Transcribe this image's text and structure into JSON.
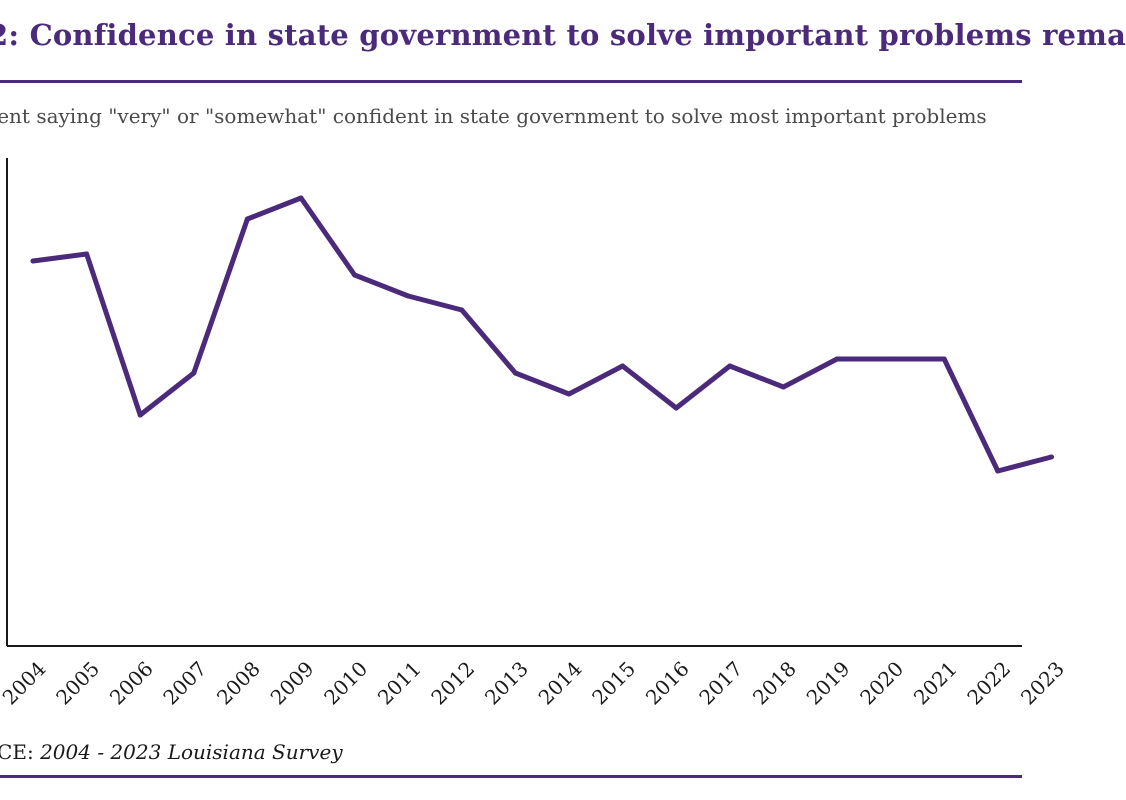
{
  "header": {
    "title": "2: Confidence in state government to solve important problems rema",
    "subtitle": "cent  saying \"very\" or \"somewhat\" confident in state government to solve most important problems"
  },
  "footer": {
    "source_label": "RCE:",
    "source_text": "2004 - 2023 Louisiana Survey"
  },
  "chart_data": {
    "type": "line",
    "title": "2: Confidence in state government to solve important problems rema",
    "subtitle": "cent  saying \"very\" or \"somewhat\" confident in state government to solve most important problems",
    "categories": [
      "2004",
      "2005",
      "2006",
      "2007",
      "2008",
      "2009",
      "2010",
      "2011",
      "2012",
      "2013",
      "2014",
      "2015",
      "2016",
      "2017",
      "2018",
      "2019",
      "2020",
      "2021",
      "2022",
      "2023"
    ],
    "series": [
      {
        "values": [
          55,
          56,
          33,
          39,
          61,
          64,
          53,
          50,
          48,
          39,
          36,
          40,
          34,
          40,
          37,
          41,
          41,
          41,
          25,
          27
        ]
      }
    ],
    "ylim": [
      0,
      70
    ],
    "grid": false,
    "legend": "none",
    "line_color": "#4b2a7b"
  }
}
